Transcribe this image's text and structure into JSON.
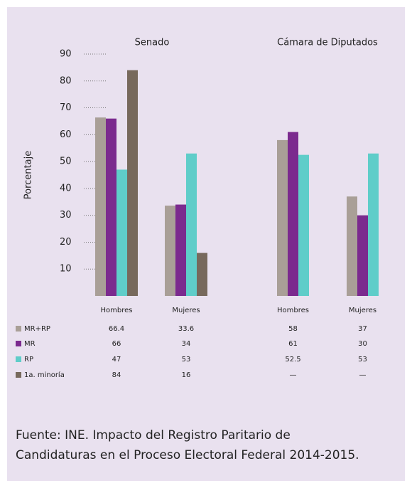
{
  "chart_data": {
    "type": "bar",
    "groups": [
      "Senado",
      "Cámara de Diputados"
    ],
    "categories": [
      "Hombres",
      "Mujeres",
      "Hombres",
      "Mujeres"
    ],
    "y_label": "Porcentaje",
    "ylim": [
      0,
      90
    ],
    "yticks": [
      10,
      20,
      30,
      40,
      50,
      60,
      70,
      80,
      90
    ],
    "grid": true,
    "series": [
      {
        "name": "MR+RP",
        "color": "#a99f97",
        "values": [
          66.4,
          33.6,
          58,
          37
        ]
      },
      {
        "name": "MR",
        "color": "#7b2a8e",
        "values": [
          66,
          34,
          61,
          30
        ]
      },
      {
        "name": "RP",
        "color": "#5fcdc9",
        "values": [
          47,
          53,
          52.5,
          53
        ]
      },
      {
        "name": "1a. minoría",
        "color": "#77695c",
        "values": [
          84,
          16,
          null,
          null
        ],
        "value_labels": [
          "84",
          "16",
          "—",
          "—"
        ]
      }
    ],
    "source": [
      "Fuente: INE. Impacto del Registro Paritario de",
      "Candidaturas en el Proceso Electoral Federal 2014-2015."
    ]
  }
}
